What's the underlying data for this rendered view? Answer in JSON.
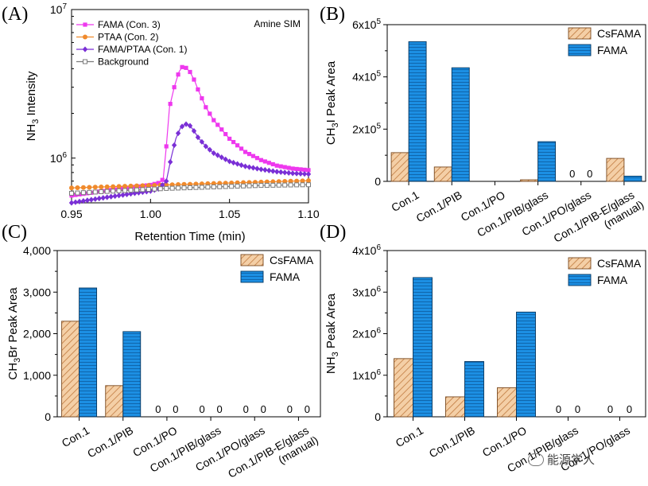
{
  "panels": {
    "A": {
      "letter": "(A)"
    },
    "B": {
      "letter": "(B)"
    },
    "C": {
      "letter": "(C)"
    },
    "D": {
      "letter": "(D)"
    }
  },
  "watermark": {
    "text": "能源学人"
  },
  "chart_data": [
    {
      "panel": "A",
      "type": "line",
      "annotation": "Amine SIM",
      "xlabel": "Retention Time (min)",
      "ylabel": "NH3 Intensity",
      "ylabel_main": "NH",
      "ylabel_sub": "3",
      "ylabel_rest": " Intensity",
      "xlim": [
        0.95,
        1.1
      ],
      "ylim": [
        500000,
        10000000
      ],
      "yscale": "log",
      "xticks": [
        0.95,
        1.0,
        1.05,
        1.1
      ],
      "xtick_labels": [
        "0.95",
        "1.00",
        "1.05",
        "1.10"
      ],
      "yticks": [
        {
          "value": 1000000,
          "base": "10",
          "exp": "6"
        },
        {
          "value": 10000000,
          "base": "10",
          "exp": "7"
        }
      ],
      "legend_position": "top-left",
      "series": [
        {
          "name": "FAMA (Con. 3)",
          "color": "#ee38ee",
          "marker": "square-filled",
          "x": [
            0.95,
            0.96,
            0.97,
            0.98,
            0.99,
            1.0,
            1.005,
            1.008,
            1.01,
            1.012,
            1.015,
            1.018,
            1.02,
            1.022,
            1.025,
            1.028,
            1.03,
            1.035,
            1.04,
            1.05,
            1.06,
            1.07,
            1.08,
            1.09,
            1.1
          ],
          "y": [
            560000,
            580000,
            600000,
            620000,
            640000,
            660000,
            680000,
            720000,
            1200000,
            2200000,
            3000000,
            3800000,
            4100000,
            4100000,
            3800000,
            3300000,
            2900000,
            2200000,
            1800000,
            1350000,
            1100000,
            970000,
            890000,
            850000,
            830000
          ]
        },
        {
          "name": "PTAA (Con. 2)",
          "color": "#f08a2c",
          "marker": "circle-filled",
          "x": [
            0.95,
            0.97,
            0.99,
            1.01,
            1.03,
            1.05,
            1.07,
            1.09,
            1.1
          ],
          "y": [
            630000,
            640000,
            650000,
            660000,
            670000,
            680000,
            690000,
            700000,
            705000
          ]
        },
        {
          "name": "FAMA/PTAA (Con. 1)",
          "color": "#7a2fd6",
          "marker": "diamond-filled",
          "x": [
            0.95,
            0.96,
            0.97,
            0.98,
            0.99,
            1.0,
            1.005,
            1.01,
            1.013,
            1.016,
            1.019,
            1.022,
            1.025,
            1.028,
            1.03,
            1.035,
            1.04,
            1.05,
            1.06,
            1.07,
            1.08,
            1.09,
            1.1
          ],
          "y": [
            500000,
            520000,
            540000,
            560000,
            580000,
            600000,
            620000,
            700000,
            1000000,
            1350000,
            1600000,
            1700000,
            1650000,
            1500000,
            1380000,
            1200000,
            1080000,
            950000,
            880000,
            840000,
            810000,
            790000,
            780000
          ]
        },
        {
          "name": "Background",
          "color": "#7b7b7b",
          "marker": "square-open",
          "x": [
            0.95,
            0.97,
            0.99,
            1.01,
            1.03,
            1.05,
            1.07,
            1.09,
            1.1
          ],
          "y": [
            580000,
            595000,
            610000,
            625000,
            635000,
            645000,
            655000,
            660000,
            662000
          ]
        }
      ]
    },
    {
      "panel": "B",
      "type": "bar",
      "ylabel": "CH3I Peak Area",
      "ylabel_main": "CH",
      "ylabel_sub": "3",
      "ylabel_rest": "I Peak Area",
      "ylim": [
        0,
        600000
      ],
      "yticks": [
        {
          "value": 0,
          "label": "0"
        },
        {
          "value": 200000,
          "base": "2x10",
          "exp": "5"
        },
        {
          "value": 400000,
          "base": "4x10",
          "exp": "5"
        },
        {
          "value": 600000,
          "base": "6x10",
          "exp": "5"
        }
      ],
      "categories": [
        "Con.1",
        "Con.1/PIB",
        "Con.1/PO",
        "Con.1/PIB/glass",
        "Con.1/PO/glass",
        "Con.1/PIB-E/glass (manual)"
      ],
      "category_lines": [
        [
          "Con.1"
        ],
        [
          "Con.1/PIB"
        ],
        [
          "Con.1/PO"
        ],
        [
          "Con.1/PIB/glass"
        ],
        [
          "Con.1/PO/glass"
        ],
        [
          "Con.1/PIB-E/glass",
          "(manual)"
        ]
      ],
      "legend_position": "top-right",
      "series": [
        {
          "name": "CsFAMA",
          "values": [
            110000,
            55000,
            0,
            6000,
            0,
            88000
          ],
          "zero_labels": [
            false,
            false,
            false,
            false,
            true,
            false
          ]
        },
        {
          "name": "FAMA",
          "values": [
            535000,
            435000,
            0,
            152000,
            0,
            20000
          ],
          "zero_labels": [
            false,
            false,
            false,
            false,
            true,
            false
          ]
        }
      ],
      "zero_label": "0"
    },
    {
      "panel": "C",
      "type": "bar",
      "ylabel": "CH3Br Peak Area",
      "ylabel_main": "CH",
      "ylabel_sub": "3",
      "ylabel_rest": "Br Peak Area",
      "ylim": [
        0,
        4000
      ],
      "yticks": [
        {
          "value": 0,
          "label": "0"
        },
        {
          "value": 1000,
          "label": "1,000"
        },
        {
          "value": 2000,
          "label": "2,000"
        },
        {
          "value": 3000,
          "label": "3,000"
        },
        {
          "value": 4000,
          "label": "4,000"
        }
      ],
      "categories": [
        "Con.1",
        "Con.1/PIB",
        "Con.1/PO",
        "Con.1/PIB/glass",
        "Con.1/PO/glass",
        "Con.1/PIB-E/glass (manual)"
      ],
      "category_lines": [
        [
          "Con.1"
        ],
        [
          "Con.1/PIB"
        ],
        [
          "Con.1/PO"
        ],
        [
          "Con.1/PIB/glass"
        ],
        [
          "Con.1/PO/glass"
        ],
        [
          "Con.1/PIB-E/glass",
          "(manual)"
        ]
      ],
      "legend_position": "top-right",
      "series": [
        {
          "name": "CsFAMA",
          "values": [
            2300,
            750,
            0,
            0,
            0,
            0
          ],
          "zero_labels": [
            false,
            false,
            true,
            true,
            true,
            true
          ]
        },
        {
          "name": "FAMA",
          "values": [
            3100,
            2050,
            0,
            0,
            0,
            0
          ],
          "zero_labels": [
            false,
            false,
            true,
            true,
            true,
            true
          ]
        }
      ],
      "zero_label": "0"
    },
    {
      "panel": "D",
      "type": "bar",
      "ylabel": "NH3 Peak Area",
      "ylabel_main": "NH",
      "ylabel_sub": "3",
      "ylabel_rest": " Peak Area",
      "ylim": [
        0,
        4000000
      ],
      "yticks": [
        {
          "value": 0,
          "label": "0"
        },
        {
          "value": 1000000,
          "base": "1x10",
          "exp": "6"
        },
        {
          "value": 2000000,
          "base": "2x10",
          "exp": "6"
        },
        {
          "value": 3000000,
          "base": "3x10",
          "exp": "6"
        },
        {
          "value": 4000000,
          "base": "4x10",
          "exp": "6"
        }
      ],
      "categories": [
        "Con.1",
        "Con.1/PIB",
        "Con.1/PO",
        "Con.1/PIB/glass",
        "Con.1/PO/glass"
      ],
      "category_lines": [
        [
          "Con.1"
        ],
        [
          "Con.1/PIB"
        ],
        [
          "Con.1/PO"
        ],
        [
          "Con.1/PIB/glass"
        ],
        [
          "Con.1/PO/glass"
        ]
      ],
      "legend_position": "top-right",
      "series": [
        {
          "name": "CsFAMA",
          "values": [
            1400000,
            480000,
            700000,
            0,
            0
          ],
          "zero_labels": [
            false,
            false,
            false,
            true,
            true
          ]
        },
        {
          "name": "FAMA",
          "values": [
            3350000,
            1330000,
            2520000,
            0,
            0
          ],
          "zero_labels": [
            false,
            false,
            false,
            true,
            true
          ]
        }
      ],
      "zero_label": "0"
    }
  ],
  "colors": {
    "csfama_fill": "#f2c9a0",
    "csfama_hatch": "#c98a55",
    "fama_fill": "#1f8fe0",
    "fama_line": "#0a4d8a"
  }
}
